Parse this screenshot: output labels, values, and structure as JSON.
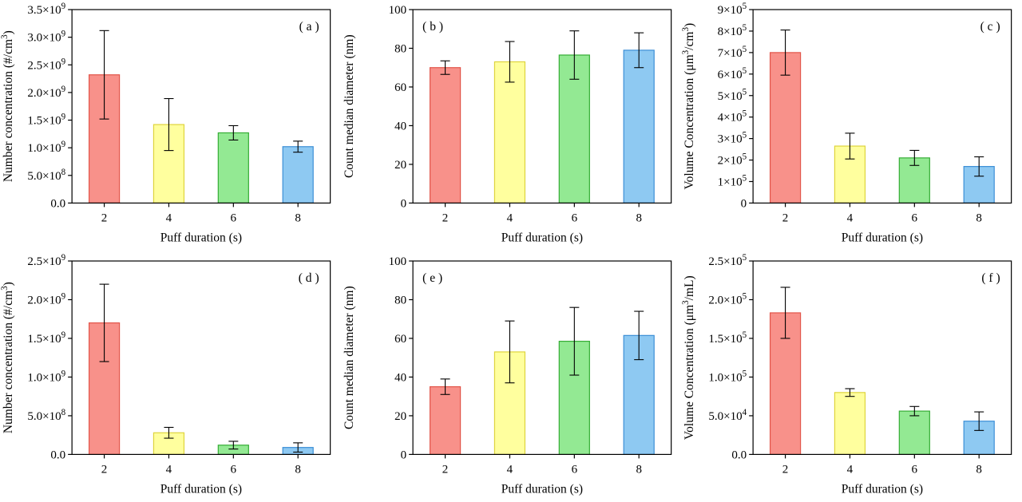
{
  "figure": {
    "background": "#ffffff"
  },
  "style": {
    "bar_fills": [
      "#f8918a",
      "#ffff9e",
      "#93e993",
      "#8ec9f2"
    ],
    "bar_strokes": [
      "#e2554a",
      "#ded43c",
      "#35ad35",
      "#3c8fd6"
    ],
    "error_color": "#000000",
    "frame_color": "#000000"
  },
  "chart_data": [
    {
      "type": "bar",
      "panel": "a",
      "tag": "( a )",
      "tag_side": "right",
      "xlabel": "Puff duration (s)",
      "ylabel": "Number concentration (#/cm^{3})",
      "categories": [
        "2",
        "4",
        "6",
        "8"
      ],
      "values": [
        2320000000.0,
        1420000000.0,
        1270000000.0,
        1020000000.0
      ],
      "errors": [
        800000000.0,
        470000000.0,
        130000000.0,
        100000000.0
      ],
      "ylim": [
        0,
        3500000000.0
      ],
      "yticks": [
        0,
        500000000.0,
        1000000000.0,
        1500000000.0,
        2000000000.0,
        2500000000.0,
        3000000000.0,
        3500000000.0
      ],
      "ytick_labels": [
        "0.0",
        "5.0×10^{8}",
        "1.0×10^{9}",
        "1.5×10^{9}",
        "2.0×10^{9}",
        "2.5×10^{9}",
        "3.0×10^{9}",
        "3.5×10^{9}"
      ]
    },
    {
      "type": "bar",
      "panel": "b",
      "tag": "( b )",
      "tag_side": "left",
      "xlabel": "Puff duration (s)",
      "ylabel": "Count median diameter (nm)",
      "categories": [
        "2",
        "4",
        "6",
        "8"
      ],
      "values": [
        70,
        73,
        76.5,
        79
      ],
      "errors": [
        3.5,
        10.5,
        12.5,
        9
      ],
      "ylim": [
        0,
        100
      ],
      "yticks": [
        0,
        20,
        40,
        60,
        80,
        100
      ],
      "ytick_labels": [
        "0",
        "20",
        "40",
        "60",
        "80",
        "100"
      ]
    },
    {
      "type": "bar",
      "panel": "c",
      "tag": "( c )",
      "tag_side": "right",
      "xlabel": "Puff duration (s)",
      "ylabel": "Volume Concentration (μm^{3}/cm^{3})",
      "categories": [
        "2",
        "4",
        "6",
        "8"
      ],
      "values": [
        700000.0,
        265000.0,
        210000.0,
        170000.0
      ],
      "errors": [
        105000.0,
        60000.0,
        35000.0,
        45000.0
      ],
      "ylim": [
        0,
        900000.0
      ],
      "yticks": [
        0,
        100000.0,
        200000.0,
        300000.0,
        400000.0,
        500000.0,
        600000.0,
        700000.0,
        800000.0,
        900000.0
      ],
      "ytick_labels": [
        "0",
        "1×10^{5}",
        "2×10^{5}",
        "3×10^{5}",
        "4×10^{5}",
        "5×10^{5}",
        "6×10^{5}",
        "7×10^{5}",
        "8×10^{5}",
        "9×10^{5}"
      ]
    },
    {
      "type": "bar",
      "panel": "d",
      "tag": "( d )",
      "tag_side": "right",
      "xlabel": "Puff duration (s)",
      "ylabel": "Number concentration (#/cm^{3})",
      "categories": [
        "2",
        "4",
        "6",
        "8"
      ],
      "values": [
        1700000000.0,
        280000000.0,
        120000000.0,
        90000000.0
      ],
      "errors": [
        500000000.0,
        70000000.0,
        50000000.0,
        60000000.0
      ],
      "ylim": [
        0,
        2500000000.0
      ],
      "yticks": [
        0,
        500000000.0,
        1000000000.0,
        1500000000.0,
        2000000000.0,
        2500000000.0
      ],
      "ytick_labels": [
        "0.0",
        "5.0×10^{8}",
        "1.0×10^{9}",
        "1.5×10^{9}",
        "2.0×10^{9}",
        "2.5×10^{9}"
      ]
    },
    {
      "type": "bar",
      "panel": "e",
      "tag": "( e )",
      "tag_side": "left",
      "xlabel": "Puff duration (s)",
      "ylabel": "Count median diameter (nm)",
      "categories": [
        "2",
        "4",
        "6",
        "8"
      ],
      "values": [
        35,
        53,
        58.5,
        61.5
      ],
      "errors": [
        4,
        16,
        17.5,
        12.5
      ],
      "ylim": [
        0,
        100
      ],
      "yticks": [
        0,
        20,
        40,
        60,
        80,
        100
      ],
      "ytick_labels": [
        "0",
        "20",
        "40",
        "60",
        "80",
        "100"
      ]
    },
    {
      "type": "bar",
      "panel": "f",
      "tag": "( f )",
      "tag_side": "right",
      "xlabel": "Puff duration (s)",
      "ylabel": "Volume Concentration (μm^{3}/mL)",
      "categories": [
        "2",
        "4",
        "6",
        "8"
      ],
      "values": [
        183000.0,
        80000.0,
        56000.0,
        43000.0
      ],
      "errors": [
        33000.0,
        5000.0,
        6000.0,
        12000.0
      ],
      "ylim": [
        0,
        250000.0
      ],
      "yticks": [
        0,
        50000.0,
        100000.0,
        150000.0,
        200000.0,
        250000.0
      ],
      "ytick_labels": [
        "0.0",
        "5.0×10^{4}",
        "1.0×10^{5}",
        "1.5×10^{5}",
        "2.0×10^{5}",
        "2.5×10^{5}"
      ]
    }
  ]
}
